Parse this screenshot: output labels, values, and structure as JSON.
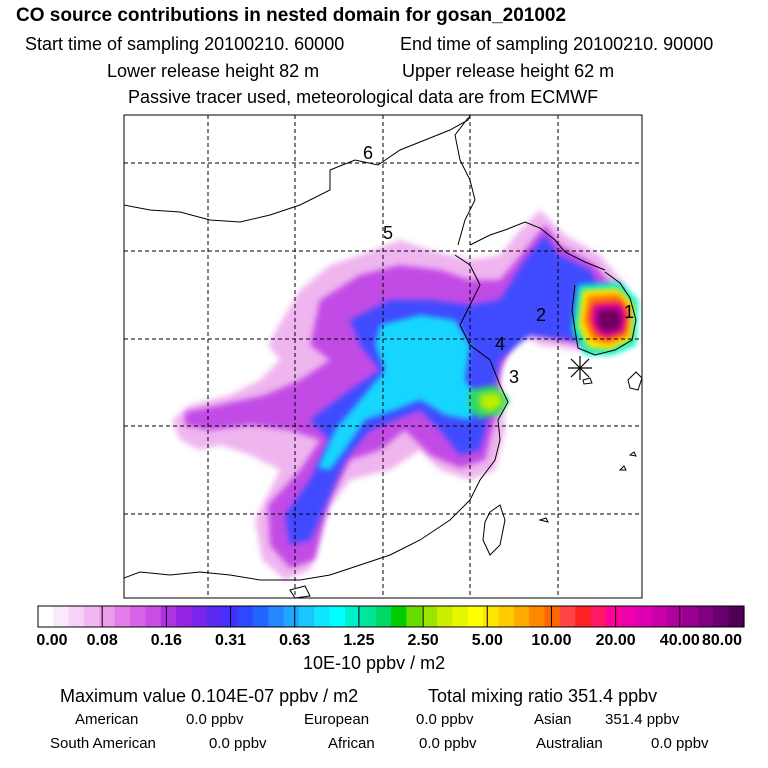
{
  "header": {
    "title": "CO  source contributions in nested domain for gosan_201002",
    "start_time": "Start time of sampling 20100210. 60000",
    "end_time": "End time of sampling 20100210. 90000",
    "lower_height": "Lower release height   82 m",
    "upper_height": "Upper release height   62 m",
    "tracer_note": "Passive tracer used, meteorological data are from ECMWF"
  },
  "map": {
    "region_labels": [
      "1",
      "2",
      "3",
      "4",
      "5",
      "6"
    ],
    "receptor_marker": "asterisk-icon"
  },
  "colorbar": {
    "tick_labels": [
      "0.00",
      "0.08",
      "0.16",
      "0.31",
      "0.63",
      "1.25",
      "2.50",
      "5.00",
      "10.00",
      "20.00",
      "40.00",
      "80.00"
    ],
    "unit": "10E-10 ppbv / m2",
    "colors": [
      "#ffffff",
      "#fbe8fb",
      "#f7d2f7",
      "#f1b7f1",
      "#eb9deb",
      "#e27de9",
      "#d763e9",
      "#c94ee6",
      "#b033e3",
      "#9624e0",
      "#7a26ea",
      "#5a2af0",
      "#4530ff",
      "#2f48ff",
      "#1f66ff",
      "#2586ff",
      "#1fa6ff",
      "#19c6ff",
      "#10e6ff",
      "#00ffff",
      "#00f0cc",
      "#00e699",
      "#00d966",
      "#00cc00",
      "#66dd00",
      "#99e600",
      "#ccee00",
      "#e6f500",
      "#ffff00",
      "#ffe600",
      "#ffcc00",
      "#ffaa00",
      "#ff8800",
      "#ff6600",
      "#ff4444",
      "#ff2222",
      "#ff1a66",
      "#ff0099",
      "#ee00aa",
      "#dd00b0",
      "#c800a8",
      "#b0009e",
      "#990090",
      "#800080",
      "#660070",
      "#4d0055"
    ]
  },
  "summary": {
    "max_value": "Maximum value  0.104E-07 ppbv / m2",
    "total_mixing": "Total mixing ratio      351.4 ppbv",
    "sources": [
      {
        "name": "American",
        "value": "0.0 ppbv"
      },
      {
        "name": "European",
        "value": "0.0 ppbv"
      },
      {
        "name": "Asian",
        "value": "351.4 ppbv"
      },
      {
        "name": "South American",
        "value": "0.0 ppbv"
      },
      {
        "name": "African",
        "value": "0.0 ppbv"
      },
      {
        "name": "Australian",
        "value": "0.0 ppbv"
      }
    ]
  }
}
